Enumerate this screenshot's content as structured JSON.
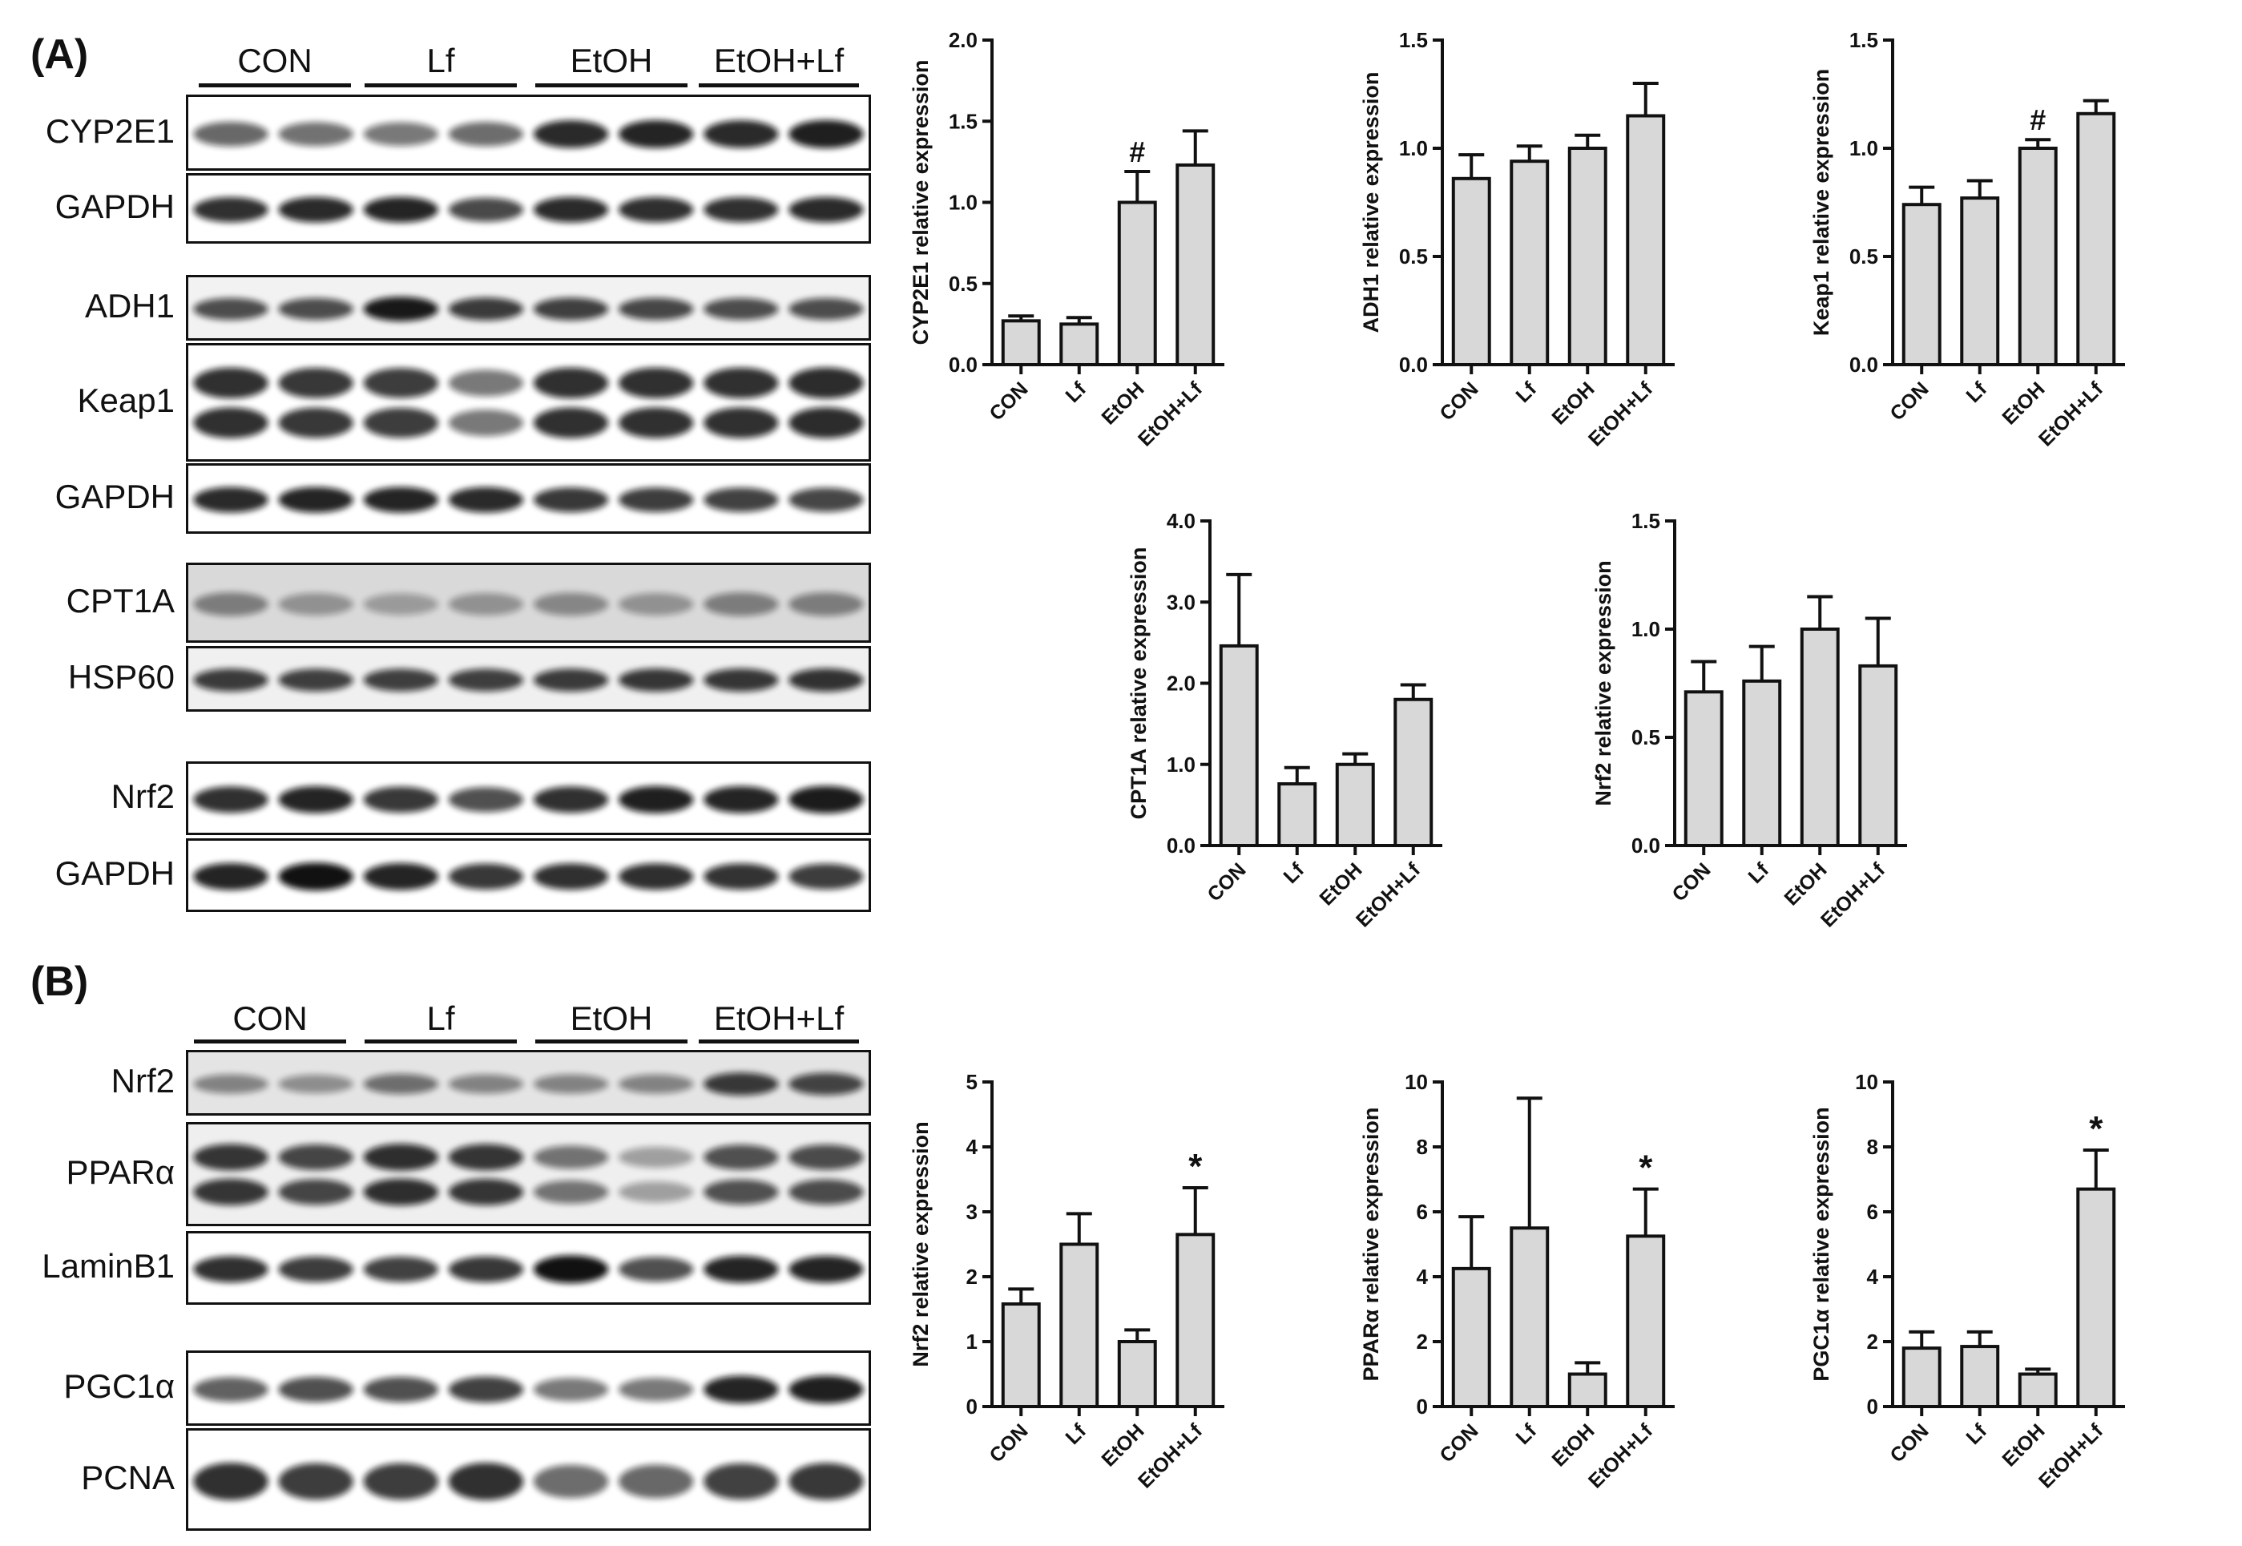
{
  "panels": {
    "a": "(A)",
    "b": "(B)"
  },
  "groups": [
    "CON",
    "Lf",
    "EtOH",
    "EtOH+Lf"
  ],
  "blots_a": [
    {
      "id": "cyp2e1",
      "label": "CYP2E1",
      "bg": "#ffffff",
      "bands": [
        0.62,
        0.58,
        0.55,
        0.6,
        0.88,
        0.9,
        0.88,
        0.92
      ],
      "double": false
    },
    {
      "id": "gapdh1",
      "label": "GAPDH",
      "bg": "#ffffff",
      "bands": [
        0.85,
        0.88,
        0.9,
        0.75,
        0.88,
        0.86,
        0.85,
        0.88
      ],
      "double": false
    },
    {
      "id": "adh1",
      "label": "ADH1",
      "bg": "#f2f2f2",
      "bands": [
        0.72,
        0.72,
        0.95,
        0.8,
        0.78,
        0.75,
        0.72,
        0.72
      ],
      "double": false
    },
    {
      "id": "keap1",
      "label": "Keap1",
      "bg": "#ffffff",
      "bands": [
        0.85,
        0.82,
        0.8,
        0.55,
        0.85,
        0.85,
        0.85,
        0.87
      ],
      "double": true
    },
    {
      "id": "gapdh2",
      "label": "GAPDH",
      "bg": "#ffffff",
      "bands": [
        0.88,
        0.9,
        0.9,
        0.88,
        0.82,
        0.8,
        0.78,
        0.76
      ],
      "double": false
    },
    {
      "id": "cpt1a",
      "label": "CPT1A",
      "bg": "#d9d9d9",
      "bands": [
        0.45,
        0.35,
        0.3,
        0.35,
        0.4,
        0.35,
        0.45,
        0.45
      ],
      "double": false
    },
    {
      "id": "hsp60",
      "label": "HSP60",
      "bg": "#f0f0f0",
      "bands": [
        0.8,
        0.78,
        0.78,
        0.78,
        0.8,
        0.82,
        0.82,
        0.84
      ],
      "double": false
    },
    {
      "id": "nrf2a",
      "label": "Nrf2",
      "bg": "#ffffff",
      "bands": [
        0.85,
        0.9,
        0.82,
        0.72,
        0.85,
        0.92,
        0.9,
        0.94
      ],
      "double": false
    },
    {
      "id": "gapdh3",
      "label": "GAPDH",
      "bg": "#ffffff",
      "bands": [
        0.9,
        0.98,
        0.9,
        0.82,
        0.85,
        0.86,
        0.84,
        0.8
      ],
      "double": false
    }
  ],
  "blots_b": [
    {
      "id": "nrf2b",
      "label": "Nrf2",
      "bg": "#e4e4e4",
      "bands": [
        0.45,
        0.4,
        0.55,
        0.45,
        0.45,
        0.45,
        0.8,
        0.75
      ],
      "double": false
    },
    {
      "id": "ppara",
      "label": "PPARα",
      "bg": "#efefef",
      "bands": [
        0.82,
        0.75,
        0.85,
        0.82,
        0.55,
        0.35,
        0.7,
        0.72
      ],
      "double": true
    },
    {
      "id": "laminb1",
      "label": "LaminB1",
      "bg": "#ffffff",
      "bands": [
        0.85,
        0.8,
        0.78,
        0.82,
        0.98,
        0.72,
        0.9,
        0.9
      ],
      "double": false
    },
    {
      "id": "pgc1a",
      "label": "PGC1α",
      "bg": "#ffffff",
      "bands": [
        0.65,
        0.72,
        0.72,
        0.78,
        0.55,
        0.55,
        0.9,
        0.92
      ],
      "double": false
    },
    {
      "id": "pcna",
      "label": "PCNA",
      "bg": "#ffffff",
      "bands": [
        0.85,
        0.8,
        0.8,
        0.85,
        0.6,
        0.62,
        0.78,
        0.82
      ],
      "double": false
    }
  ],
  "chart_data": [
    {
      "type": "bar",
      "id": "cyp2e1",
      "categories": [
        "CON",
        "Lf",
        "EtOH",
        "EtOH+Lf"
      ],
      "values": [
        0.27,
        0.25,
        1.0,
        1.23
      ],
      "errors": [
        0.03,
        0.04,
        0.19,
        0.21
      ],
      "annotations": [
        "",
        "",
        "#",
        ""
      ],
      "ylabel": "CYP2E1 relative expression",
      "ylim": [
        0,
        2.0
      ],
      "yticks": [
        "0.0",
        "0.5",
        "1.0",
        "1.5",
        "2.0"
      ]
    },
    {
      "type": "bar",
      "id": "adh1",
      "categories": [
        "CON",
        "Lf",
        "EtOH",
        "EtOH+Lf"
      ],
      "values": [
        0.86,
        0.94,
        1.0,
        1.15
      ],
      "errors": [
        0.11,
        0.07,
        0.06,
        0.15
      ],
      "annotations": [
        "",
        "",
        "",
        ""
      ],
      "ylabel": "ADH1 relative expression",
      "ylim": [
        0,
        1.5
      ],
      "yticks": [
        "0.0",
        "0.5",
        "1.0",
        "1.5"
      ]
    },
    {
      "type": "bar",
      "id": "keap1",
      "categories": [
        "CON",
        "Lf",
        "EtOH",
        "EtOH+Lf"
      ],
      "values": [
        0.74,
        0.77,
        1.0,
        1.16
      ],
      "errors": [
        0.08,
        0.08,
        0.04,
        0.06
      ],
      "annotations": [
        "",
        "",
        "#",
        ""
      ],
      "ylabel": "Keap1 relative expression",
      "ylim": [
        0,
        1.5
      ],
      "yticks": [
        "0.0",
        "0.5",
        "1.0",
        "1.5"
      ]
    },
    {
      "type": "bar",
      "id": "cpt1a",
      "categories": [
        "CON",
        "Lf",
        "EtOH",
        "EtOH+Lf"
      ],
      "values": [
        2.46,
        0.76,
        1.0,
        1.8
      ],
      "errors": [
        0.88,
        0.2,
        0.13,
        0.18
      ],
      "annotations": [
        "",
        "",
        "",
        ""
      ],
      "ylabel": "CPT1A relative expression",
      "ylim": [
        0,
        4.0
      ],
      "yticks": [
        "0.0",
        "1.0",
        "2.0",
        "3.0",
        "4.0"
      ]
    },
    {
      "type": "bar",
      "id": "nrf2a",
      "categories": [
        "CON",
        "Lf",
        "EtOH",
        "EtOH+Lf"
      ],
      "values": [
        0.71,
        0.76,
        1.0,
        0.83
      ],
      "errors": [
        0.14,
        0.16,
        0.15,
        0.22
      ],
      "annotations": [
        "",
        "",
        "",
        ""
      ],
      "ylabel": "Nrf2 relative expression",
      "ylim": [
        0,
        1.5
      ],
      "yticks": [
        "0.0",
        "0.5",
        "1.0",
        "1.5"
      ]
    },
    {
      "type": "bar",
      "id": "nrf2b",
      "categories": [
        "CON",
        "Lf",
        "EtOH",
        "EtOH+Lf"
      ],
      "values": [
        1.58,
        2.5,
        1.0,
        2.65
      ],
      "errors": [
        0.23,
        0.47,
        0.18,
        0.72
      ],
      "annotations": [
        "",
        "",
        "",
        "*"
      ],
      "ylabel": "Nrf2 relative expression",
      "ylim": [
        0,
        5
      ],
      "yticks": [
        "0",
        "1",
        "2",
        "3",
        "4",
        "5"
      ]
    },
    {
      "type": "bar",
      "id": "ppara",
      "categories": [
        "CON",
        "Lf",
        "EtOH",
        "EtOH+Lf"
      ],
      "values": [
        4.25,
        5.5,
        1.0,
        5.25
      ],
      "errors": [
        1.6,
        4.0,
        0.35,
        1.45
      ],
      "annotations": [
        "",
        "",
        "",
        "*"
      ],
      "ylabel": "PPARα relative expression",
      "ylim": [
        0,
        10
      ],
      "yticks": [
        "0",
        "2",
        "4",
        "6",
        "8",
        "10"
      ]
    },
    {
      "type": "bar",
      "id": "pgc1a",
      "categories": [
        "CON",
        "Lf",
        "EtOH",
        "EtOH+Lf"
      ],
      "values": [
        1.8,
        1.85,
        1.0,
        6.7
      ],
      "errors": [
        0.5,
        0.45,
        0.15,
        1.2
      ],
      "annotations": [
        "",
        "",
        "",
        "*"
      ],
      "ylabel": "PGC1α relative expression",
      "ylim": [
        0,
        10
      ],
      "yticks": [
        "0",
        "2",
        "4",
        "6",
        "8",
        "10"
      ]
    }
  ]
}
